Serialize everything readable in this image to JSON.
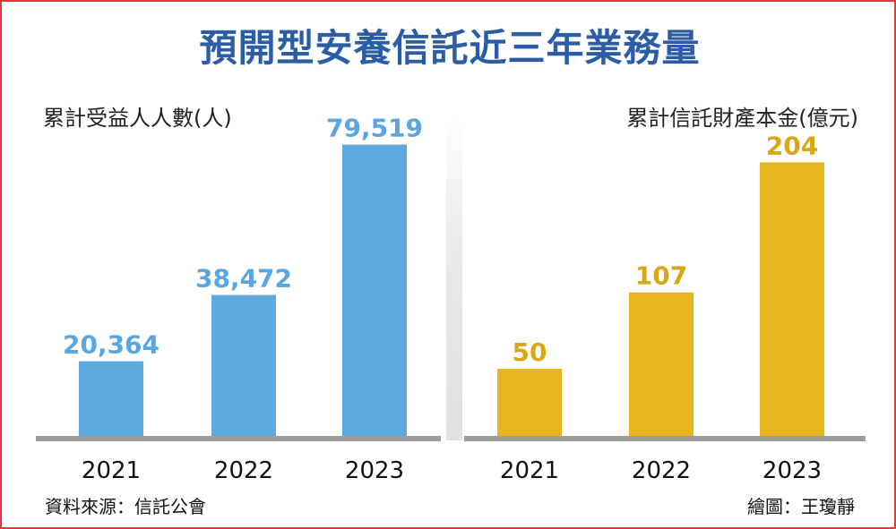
{
  "title": "預開型安養信託近三年業務量",
  "source": "資料來源：信託公會",
  "credit": "繪圖：王瓊靜",
  "colors": {
    "left_bar": "#60a8e0",
    "left_value": "#5aa6e2",
    "right_bar": "#e8b61c",
    "right_value": "#d9a716"
  },
  "chart_data": [
    {
      "type": "bar",
      "title": "累計受益人人數(人)",
      "categories": [
        "2021",
        "2022",
        "2023"
      ],
      "values": [
        20364,
        38472,
        79519
      ],
      "value_labels": [
        "20,364",
        "38,472",
        "79,519"
      ],
      "ylim": [
        0,
        86000
      ]
    },
    {
      "type": "bar",
      "title": "累計信託財產本金(億元)",
      "categories": [
        "2021",
        "2022",
        "2023"
      ],
      "values": [
        50,
        107,
        204
      ],
      "value_labels": [
        "50",
        "107",
        "204"
      ],
      "ylim": [
        0,
        235
      ]
    }
  ]
}
